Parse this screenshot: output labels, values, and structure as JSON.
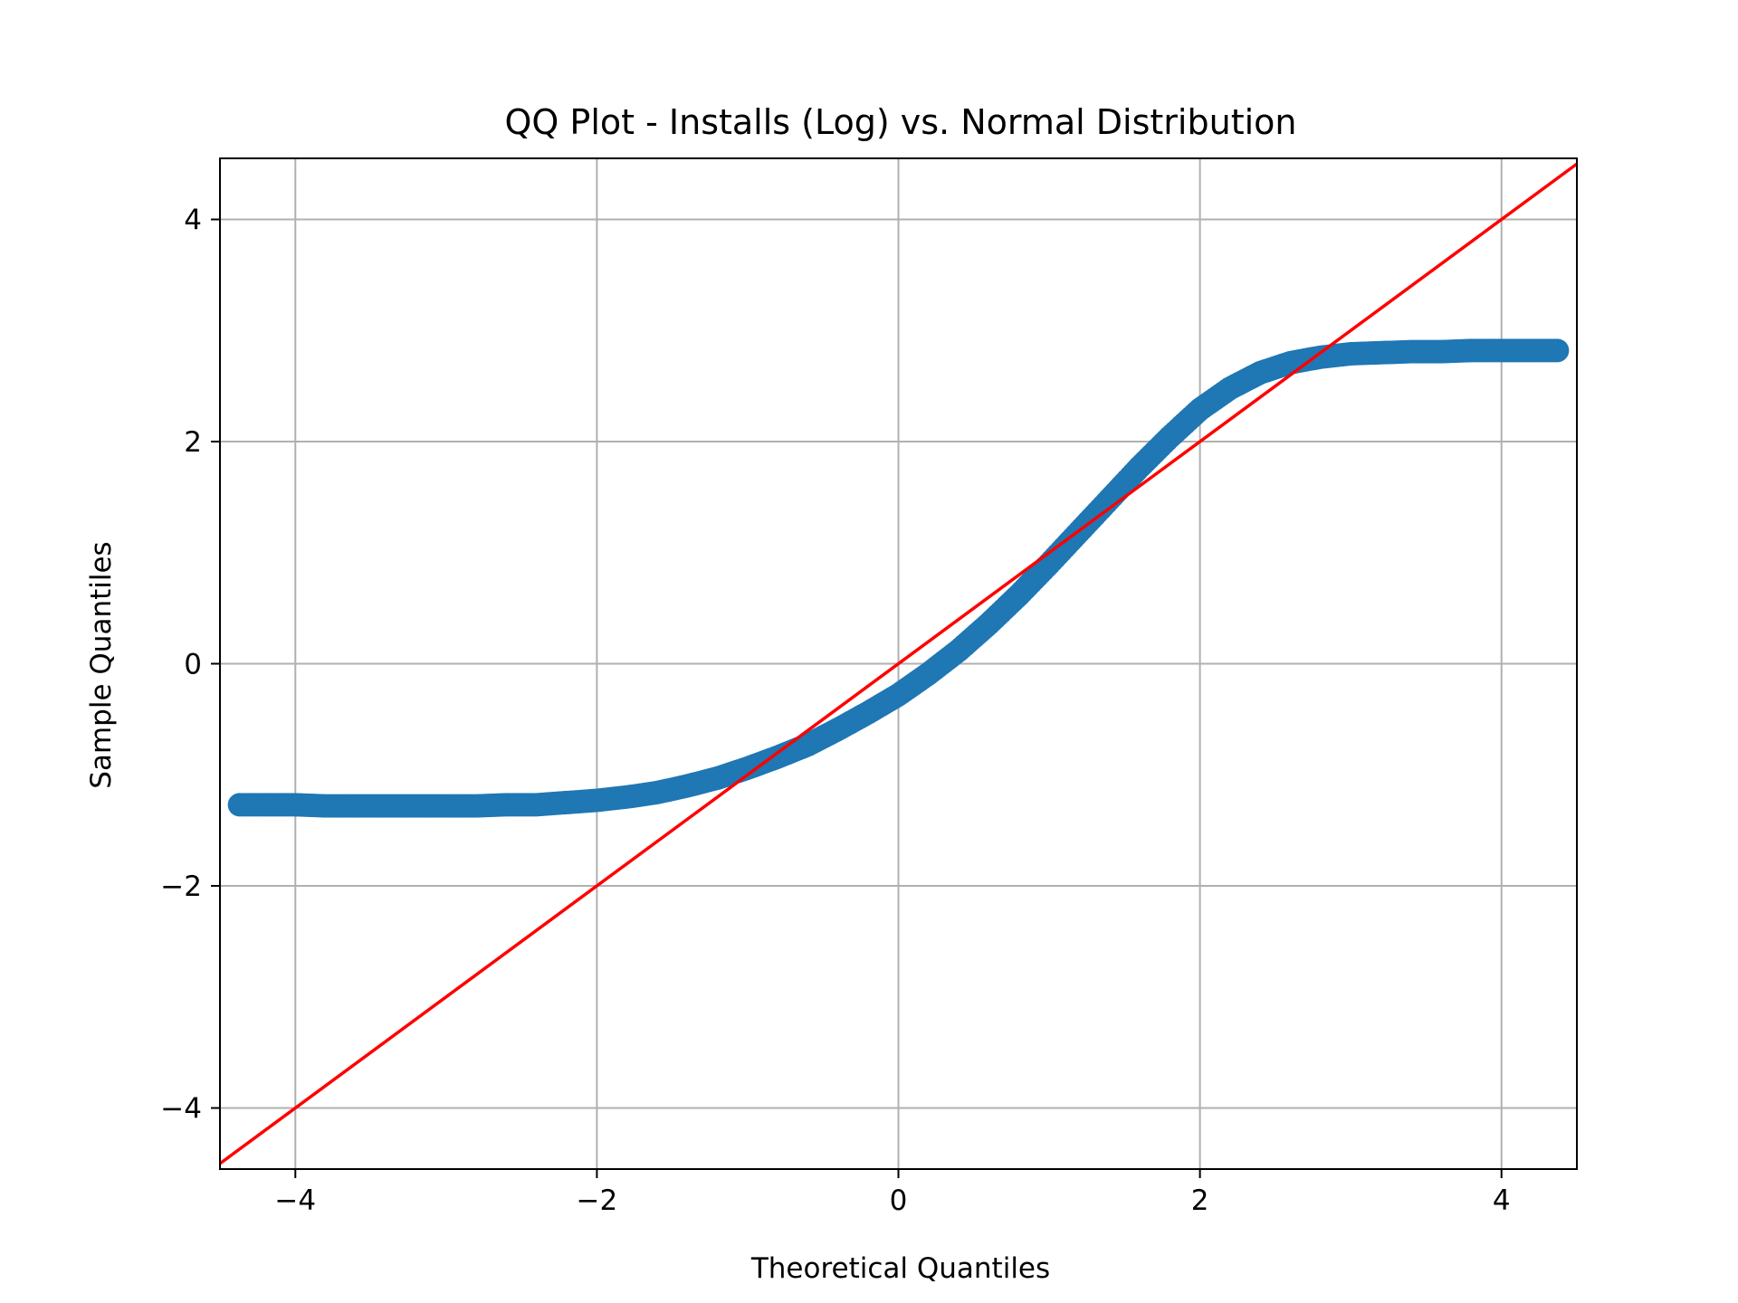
{
  "chart_data": {
    "type": "scatter",
    "title": "QQ Plot - Installs (Log) vs. Normal Distribution",
    "xlabel": "Theoretical Quantiles",
    "ylabel": "Sample Quantiles",
    "xlim": [
      -4.5,
      4.5
    ],
    "ylim": [
      -4.55,
      4.55
    ],
    "grid": true,
    "legend": "none",
    "x_ticks": [
      -4,
      -2,
      0,
      2,
      4
    ],
    "y_ticks": [
      -4,
      -2,
      0,
      2,
      4
    ],
    "x_tick_labels": [
      "−4",
      "−2",
      "0",
      "2",
      "4"
    ],
    "y_tick_labels": [
      "−4",
      "−2",
      "0",
      "2",
      "4"
    ],
    "series": [
      {
        "kind": "points",
        "color": "#1f77b4",
        "points": [
          [
            -4.37,
            -1.27
          ],
          [
            -4.2,
            -1.27
          ],
          [
            -4.1,
            -1.27
          ],
          [
            -4.0,
            -1.27
          ],
          [
            -3.8,
            -1.28
          ],
          [
            -3.6,
            -1.28
          ],
          [
            -3.4,
            -1.28
          ],
          [
            -3.2,
            -1.28
          ],
          [
            -3.0,
            -1.28
          ],
          [
            -2.8,
            -1.28
          ],
          [
            -2.6,
            -1.27
          ],
          [
            -2.4,
            -1.27
          ],
          [
            -2.2,
            -1.25
          ],
          [
            -2.0,
            -1.23
          ],
          [
            -1.8,
            -1.2
          ],
          [
            -1.6,
            -1.16
          ],
          [
            -1.4,
            -1.1
          ],
          [
            -1.2,
            -1.03
          ],
          [
            -1.0,
            -0.94
          ],
          [
            -0.8,
            -0.84
          ],
          [
            -0.6,
            -0.73
          ],
          [
            -0.4,
            -0.59
          ],
          [
            -0.2,
            -0.44
          ],
          [
            0.0,
            -0.28
          ],
          [
            0.2,
            -0.09
          ],
          [
            0.4,
            0.12
          ],
          [
            0.6,
            0.36
          ],
          [
            0.8,
            0.62
          ],
          [
            1.0,
            0.9
          ],
          [
            1.2,
            1.19
          ],
          [
            1.4,
            1.48
          ],
          [
            1.6,
            1.77
          ],
          [
            1.8,
            2.04
          ],
          [
            2.0,
            2.29
          ],
          [
            2.2,
            2.48
          ],
          [
            2.4,
            2.62
          ],
          [
            2.6,
            2.71
          ],
          [
            2.8,
            2.76
          ],
          [
            3.0,
            2.79
          ],
          [
            3.2,
            2.8
          ],
          [
            3.4,
            2.81
          ],
          [
            3.6,
            2.81
          ],
          [
            3.8,
            2.82
          ],
          [
            4.0,
            2.82
          ],
          [
            4.1,
            2.82
          ],
          [
            4.2,
            2.82
          ],
          [
            4.37,
            2.82
          ]
        ]
      },
      {
        "kind": "reference-line",
        "color": "#ff0000",
        "x": [
          -4.5,
          4.5
        ],
        "y": [
          -4.5,
          4.5
        ]
      }
    ]
  }
}
